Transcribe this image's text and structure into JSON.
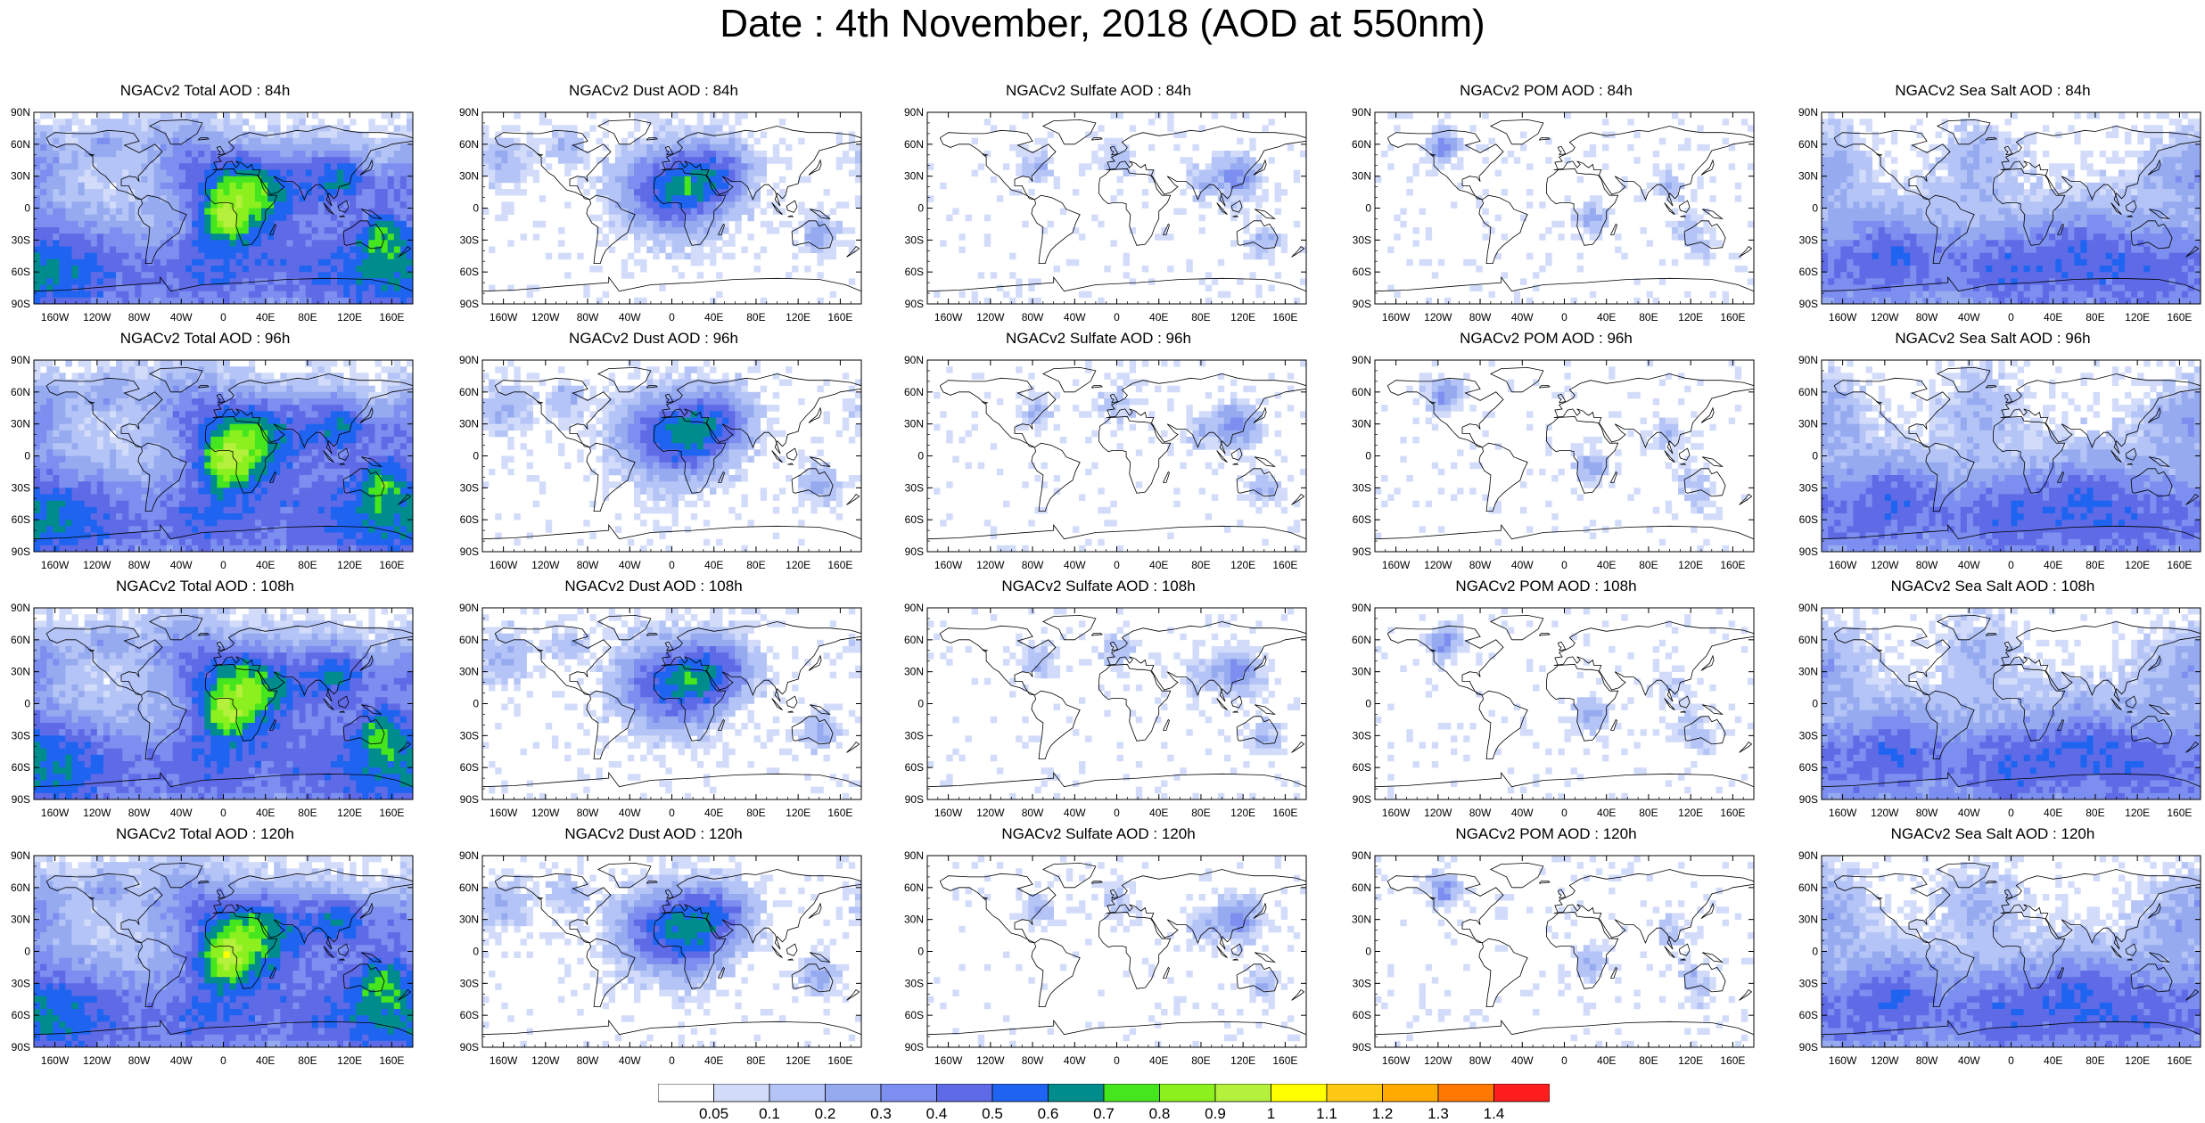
{
  "title": "Date : 4th November, 2018 (AOD at 550nm)",
  "panels": [
    {
      "title": "NGACv2 Total AOD : 84h",
      "field": "total"
    },
    {
      "title": "NGACv2 Dust AOD : 84h",
      "field": "dust"
    },
    {
      "title": "NGACv2 Sulfate AOD : 84h",
      "field": "sulfate"
    },
    {
      "title": "NGACv2 POM AOD : 84h",
      "field": "pom"
    },
    {
      "title": "NGACv2 Sea Salt AOD : 84h",
      "field": "seasalt"
    },
    {
      "title": "NGACv2 Total AOD : 96h",
      "field": "total"
    },
    {
      "title": "NGACv2 Dust AOD : 96h",
      "field": "dust"
    },
    {
      "title": "NGACv2 Sulfate AOD : 96h",
      "field": "sulfate"
    },
    {
      "title": "NGACv2 POM AOD : 96h",
      "field": "pom"
    },
    {
      "title": "NGACv2 Sea Salt AOD : 96h",
      "field": "seasalt"
    },
    {
      "title": "NGACv2 Total AOD : 108h",
      "field": "total"
    },
    {
      "title": "NGACv2 Dust AOD : 108h",
      "field": "dust"
    },
    {
      "title": "NGACv2 Sulfate AOD : 108h",
      "field": "sulfate"
    },
    {
      "title": "NGACv2 POM AOD : 108h",
      "field": "pom"
    },
    {
      "title": "NGACv2 Sea Salt AOD : 108h",
      "field": "seasalt"
    },
    {
      "title": "NGACv2 Total AOD : 120h",
      "field": "total"
    },
    {
      "title": "NGACv2 Dust AOD : 120h",
      "field": "dust"
    },
    {
      "title": "NGACv2 Sulfate AOD : 120h",
      "field": "sulfate"
    },
    {
      "title": "NGACv2 POM AOD : 120h",
      "field": "pom"
    },
    {
      "title": "NGACv2 Sea Salt  AOD : 120h",
      "field": "seasalt"
    }
  ],
  "lat_labels": [
    "90N",
    "60N",
    "30N",
    "0",
    "30S",
    "60S",
    "90S"
  ],
  "lat_values": [
    90,
    60,
    30,
    0,
    -30,
    -60,
    -90
  ],
  "lon_labels": [
    "160W",
    "120W",
    "80W",
    "40W",
    "0",
    "40E",
    "80E",
    "120E",
    "160E"
  ],
  "lon_values": [
    -160,
    -120,
    -80,
    -40,
    0,
    40,
    80,
    120,
    160
  ],
  "colorbar": {
    "levels": [
      "0.05",
      "0.1",
      "0.2",
      "0.3",
      "0.4",
      "0.5",
      "0.6",
      "0.7",
      "0.8",
      "0.9",
      "1",
      "1.1",
      "1.2",
      "1.3",
      "1.4"
    ],
    "colors": [
      "#ffffff",
      "#d2dcfa",
      "#b4c4f6",
      "#96aaf0",
      "#7c8ef0",
      "#5f6ae6",
      "#1e64f0",
      "#008c8c",
      "#46e61e",
      "#8cf01e",
      "#b4f03c",
      "#ffff00",
      "#ffc814",
      "#ffaa00",
      "#ff7800",
      "#ff1e1e"
    ]
  }
}
